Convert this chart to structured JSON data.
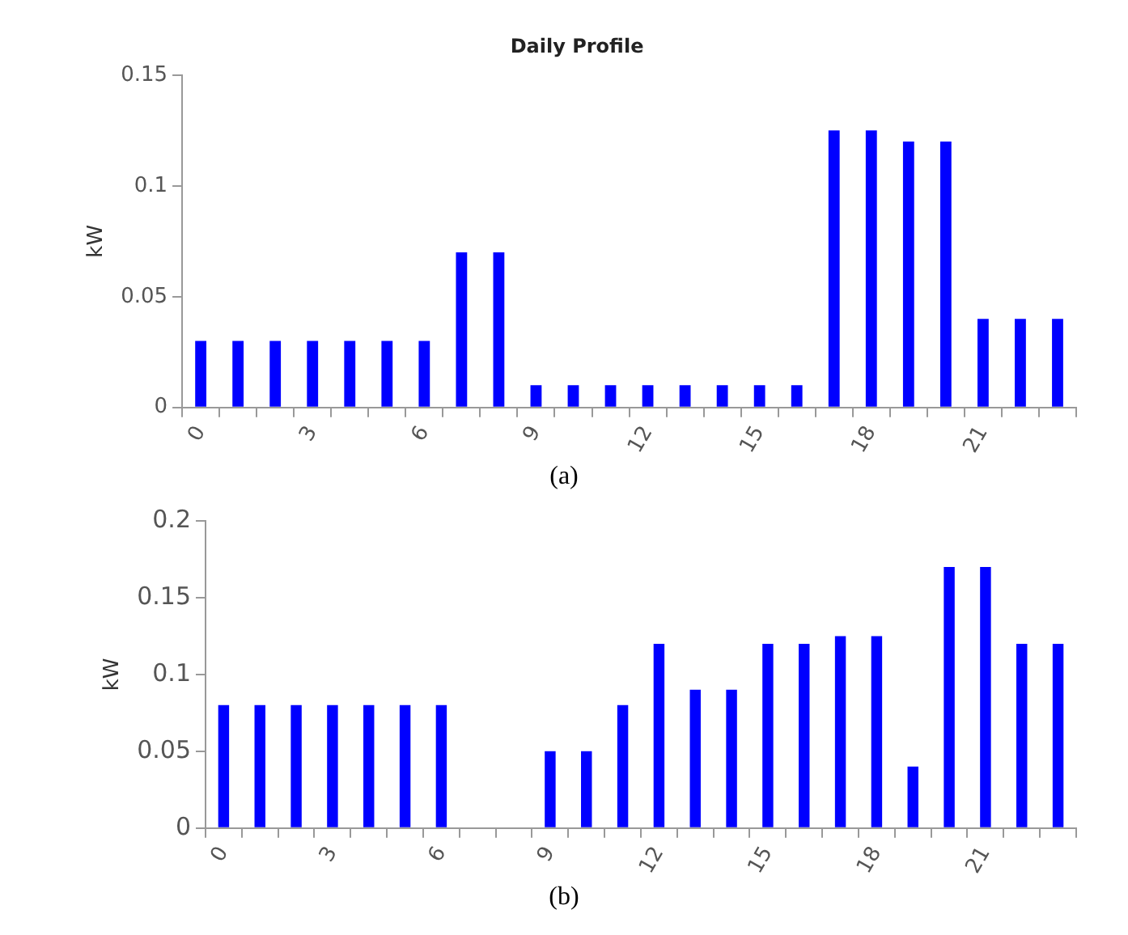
{
  "chart_data": [
    {
      "type": "bar",
      "title": "Daily Profile",
      "ylabel": "kW",
      "categories": [
        "0",
        null,
        null,
        "3",
        null,
        null,
        "6",
        null,
        null,
        "9",
        null,
        null,
        "12",
        null,
        null,
        "15",
        null,
        null,
        "18",
        null,
        null,
        "21",
        null,
        null
      ],
      "values": [
        0.03,
        0.03,
        0.03,
        0.03,
        0.03,
        0.03,
        0.03,
        0.07,
        0.07,
        0.01,
        0.01,
        0.01,
        0.01,
        0.01,
        0.01,
        0.01,
        0.01,
        0.125,
        0.125,
        0.12,
        0.12,
        0.04,
        0.04,
        0.04
      ],
      "color": "#0000ff",
      "ylim": [
        0,
        0.15
      ],
      "yticks": [
        0,
        0.05,
        0.1,
        0.15
      ],
      "grid": false,
      "legend": false,
      "annotations": [
        "(a)"
      ]
    },
    {
      "type": "bar",
      "ylabel": "kW",
      "categories": [
        "0",
        null,
        null,
        "3",
        null,
        null,
        "6",
        null,
        null,
        "9",
        null,
        null,
        "12",
        null,
        null,
        "15",
        null,
        null,
        "18",
        null,
        null,
        "21",
        null,
        null
      ],
      "values": [
        0.08,
        0.08,
        0.08,
        0.08,
        0.08,
        0.08,
        0.08,
        0,
        0,
        0.05,
        0.05,
        0.08,
        0.12,
        0.09,
        0.09,
        0.12,
        0.12,
        0.125,
        0.125,
        0.04,
        0.17,
        0.17,
        0.12,
        0.12
      ],
      "color": "#0000ff",
      "ylim": [
        0,
        0.2
      ],
      "yticks": [
        0,
        0.05,
        0.1,
        0.15,
        0.2
      ],
      "grid": false,
      "legend": false,
      "annotations": [
        "(b)"
      ]
    }
  ]
}
